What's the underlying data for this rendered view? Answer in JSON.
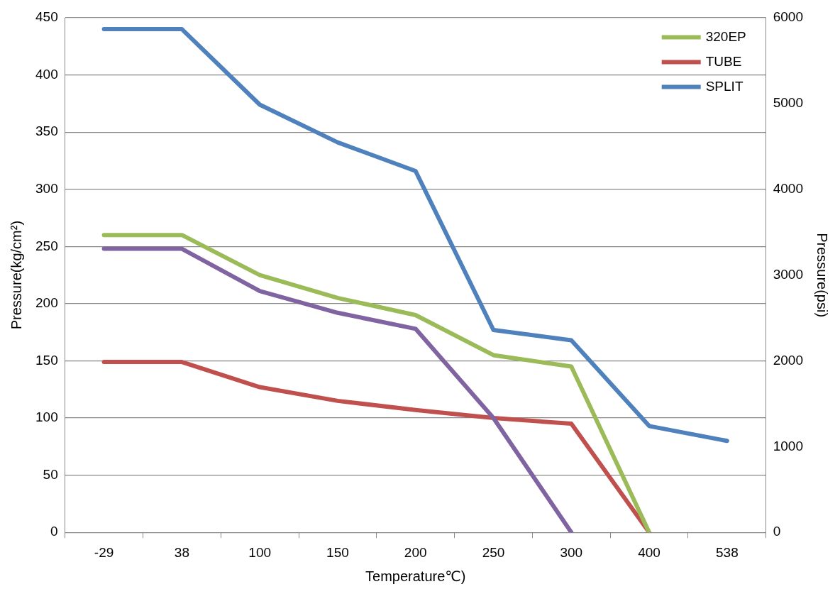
{
  "chart_data": {
    "type": "line",
    "xlabel": "Temperature℃)",
    "ylabel": "Pressure(kg/cm²)",
    "y2label": "Pressure(psi)",
    "categories": [
      "-29",
      "38",
      "100",
      "150",
      "200",
      "250",
      "300",
      "400",
      "538"
    ],
    "series": [
      {
        "name": "320EP",
        "color": "#9bbb59",
        "values": [
          260,
          260,
          225,
          205,
          190,
          155,
          145,
          0,
          null
        ]
      },
      {
        "color": "#8064a2",
        "values": [
          248,
          248,
          211,
          192,
          178,
          100,
          0,
          null,
          null
        ]
      },
      {
        "name": "TUBE",
        "color": "#c0504d",
        "values": [
          149,
          149,
          127,
          115,
          107,
          100,
          95,
          0,
          null
        ]
      },
      {
        "name": "SPLIT",
        "color": "#4f81bd",
        "values": [
          440,
          440,
          374,
          341,
          316,
          177,
          168,
          93,
          80
        ]
      }
    ],
    "ylim": [
      0,
      450
    ],
    "yticks": [
      0,
      50,
      100,
      150,
      200,
      250,
      300,
      350,
      400,
      450
    ],
    "y2lim": [
      0,
      6000
    ],
    "y2ticks": [
      0,
      1000,
      2000,
      3000,
      4000,
      5000,
      6000
    ],
    "grid": "y",
    "legend": "top right",
    "marker": "none",
    "line_style": "solid"
  }
}
